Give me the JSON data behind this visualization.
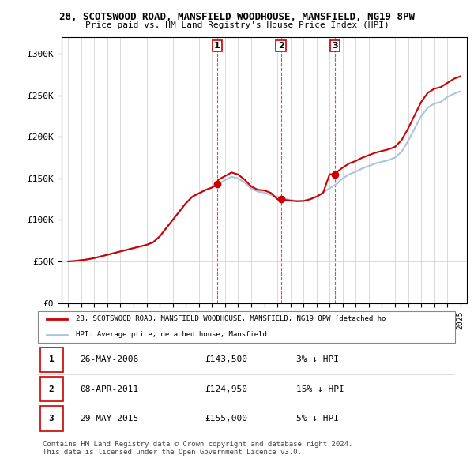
{
  "title1": "28, SCOTSWOOD ROAD, MANSFIELD WOODHOUSE, MANSFIELD, NG19 8PW",
  "title2": "Price paid vs. HM Land Registry's House Price Index (HPI)",
  "hpi_color": "#aac4dd",
  "price_color": "#cc0000",
  "marker_color": "#cc0000",
  "vline_color": "#cc0000",
  "background_color": "#ffffff",
  "grid_color": "#cccccc",
  "ylim": [
    0,
    320000
  ],
  "yticks": [
    0,
    50000,
    100000,
    150000,
    200000,
    250000,
    300000
  ],
  "ytick_labels": [
    "£0",
    "£50K",
    "£100K",
    "£150K",
    "£200K",
    "£250K",
    "£300K"
  ],
  "sale_date_nums": [
    2006.4,
    2011.27,
    2015.41
  ],
  "sale_prices": [
    143500,
    124950,
    155000
  ],
  "sale_labels": [
    "1",
    "2",
    "3"
  ],
  "legend_entries": [
    "28, SCOTSWOOD ROAD, MANSFIELD WOODHOUSE, MANSFIELD, NG19 8PW (detached ho",
    "HPI: Average price, detached house, Mansfield"
  ],
  "table_rows": [
    [
      "1",
      "26-MAY-2006",
      "£143,500",
      "3% ↓ HPI"
    ],
    [
      "2",
      "08-APR-2011",
      "£124,950",
      "15% ↓ HPI"
    ],
    [
      "3",
      "29-MAY-2015",
      "£155,000",
      "5% ↓ HPI"
    ]
  ],
  "footer": "Contains HM Land Registry data © Crown copyright and database right 2024.\nThis data is licensed under the Open Government Licence v3.0."
}
